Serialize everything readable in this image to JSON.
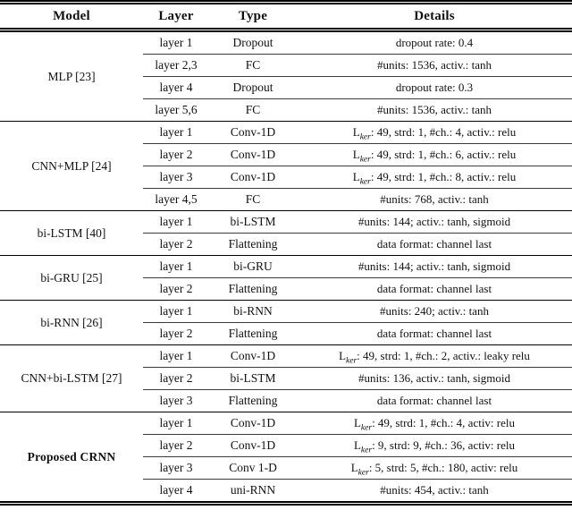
{
  "table": {
    "headers": {
      "model": "Model",
      "layer": "Layer",
      "type": "Type",
      "details": "Details"
    },
    "groups": [
      {
        "model": "MLP [23]",
        "rows": [
          {
            "layer": "layer 1",
            "type": "Dropout",
            "d_rest": "dropout rate: 0.4"
          },
          {
            "layer": "layer 2,3",
            "type": "FC",
            "d_rest": "#units: 1536, activ.: tanh"
          },
          {
            "layer": "layer 4",
            "type": "Dropout",
            "d_rest": "dropout rate: 0.3"
          },
          {
            "layer": "layer 5,6",
            "type": "FC",
            "d_rest": "#units: 1536, activ.: tanh"
          }
        ]
      },
      {
        "model": "CNN+MLP [24]",
        "rows": [
          {
            "layer": "layer 1",
            "type": "Conv-1D",
            "d_pre": "L",
            "d_sub": "ker",
            "d_rest": ": 49, strd: 1, #ch.: 4, activ.: relu"
          },
          {
            "layer": "layer 2",
            "type": "Conv-1D",
            "d_pre": "L",
            "d_sub": "ker",
            "d_rest": ": 49, strd: 1, #ch.: 6, activ.: relu"
          },
          {
            "layer": "layer 3",
            "type": "Conv-1D",
            "d_pre": "L",
            "d_sub": "ker",
            "d_rest": ": 49, strd: 1, #ch.: 8, activ.: relu"
          },
          {
            "layer": "layer 4,5",
            "type": "FC",
            "d_rest": "#units: 768, activ.: tanh"
          }
        ]
      },
      {
        "model": "bi-LSTM [40]",
        "rows": [
          {
            "layer": "layer 1",
            "type": "bi-LSTM",
            "d_rest": "#units: 144; activ.: tanh, sigmoid"
          },
          {
            "layer": "layer 2",
            "type": "Flattening",
            "d_rest": "data format: channel last"
          }
        ]
      },
      {
        "model": "bi-GRU [25]",
        "rows": [
          {
            "layer": "layer 1",
            "type": "bi-GRU",
            "d_rest": "#units: 144; activ.: tanh, sigmoid"
          },
          {
            "layer": "layer 2",
            "type": "Flattening",
            "d_rest": "data format: channel last"
          }
        ]
      },
      {
        "model": "bi-RNN [26]",
        "rows": [
          {
            "layer": "layer 1",
            "type": "bi-RNN",
            "d_rest": "#units: 240; activ.: tanh"
          },
          {
            "layer": "layer 2",
            "type": "Flattening",
            "d_rest": "data format: channel last"
          }
        ]
      },
      {
        "model": "CNN+bi-LSTM [27]",
        "rows": [
          {
            "layer": "layer 1",
            "type": "Conv-1D",
            "d_pre": "L",
            "d_sub": "ker",
            "d_rest": ": 49, strd: 1, #ch.: 2, activ.: leaky relu"
          },
          {
            "layer": "layer 2",
            "type": "bi-LSTM",
            "d_rest": "#units: 136, activ.: tanh, sigmoid"
          },
          {
            "layer": "layer 3",
            "type": "Flattening",
            "d_rest": "data format: channel last"
          }
        ]
      },
      {
        "model": "Proposed CRNN",
        "rows": [
          {
            "layer": "layer 1",
            "type": "Conv-1D",
            "d_pre": "L",
            "d_sub": "ker",
            "d_rest": ": 49, strd: 1, #ch.: 4, activ: relu"
          },
          {
            "layer": "layer 2",
            "type": "Conv-1D",
            "d_pre": "L",
            "d_sub": "ker",
            "d_rest": ": 9, strd: 9, #ch.: 36, activ: relu"
          },
          {
            "layer": "layer 3",
            "type": "Conv 1-D",
            "d_pre": "L",
            "d_sub": "ker",
            "d_rest": ": 5, strd: 5, #ch.: 180, activ: relu"
          },
          {
            "layer": "layer 4",
            "type": "uni-RNN",
            "d_rest": "#units: 454, activ.: tanh"
          }
        ]
      }
    ]
  }
}
